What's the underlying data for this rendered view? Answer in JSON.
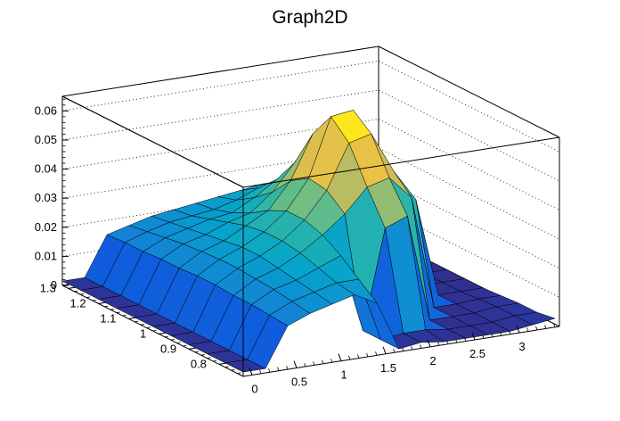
{
  "chart_data": {
    "type": "surface",
    "title": "Graph2D",
    "x_axis": {
      "min": -0.1,
      "max": 3.45,
      "ticks": [
        0,
        0.5,
        1,
        1.5,
        2,
        2.5,
        3
      ],
      "tick_labels": [
        "0",
        "0.5",
        "1",
        "1.5",
        "2",
        "2.5",
        "3"
      ]
    },
    "y_axis": {
      "min": 0.72,
      "max": 1.32,
      "ticks": [
        0.8,
        0.9,
        1,
        1.1,
        1.2,
        1.3
      ],
      "tick_labels": [
        "0.8",
        "0.9",
        "1",
        "1.1",
        "1.2",
        "1.3"
      ]
    },
    "z_axis": {
      "min": 0,
      "max": 0.065,
      "ticks": [
        0,
        0.01,
        0.02,
        0.03,
        0.04,
        0.05,
        0.06
      ],
      "tick_labels": [
        "0",
        "0.01",
        "0.02",
        "0.03",
        "0.04",
        "0.05",
        "0.06"
      ]
    },
    "grid": true,
    "colormap": [
      "#352a87",
      "#0f5cdd",
      "#1481d6",
      "#06a4ca",
      "#2eb7a4",
      "#87bf77",
      "#d1bb59",
      "#fec832",
      "#f9fb0e"
    ],
    "grid_x": [
      -0.1,
      0.15,
      0.4,
      0.65,
      0.9,
      1.15,
      1.4,
      1.65,
      1.9,
      2.15,
      2.4,
      2.65,
      2.9,
      3.15,
      3.4
    ],
    "grid_y": [
      0.72,
      0.78,
      0.84,
      0.9,
      0.96,
      1.02,
      1.08,
      1.14,
      1.2,
      1.26,
      1.32
    ],
    "surface_z": [
      [
        0.0015,
        0.0015,
        0.0015,
        0.0015,
        0.0015,
        0.0015,
        0.0015,
        0.0015,
        0.0015,
        0.0015,
        0.0015
      ],
      [
        0.0015,
        0.0015,
        0.0015,
        0.0015,
        0.0015,
        0.0015,
        0.0015,
        0.0015,
        0.0015,
        0.0015,
        0.0015
      ],
      [
        0.015,
        0.0155,
        0.016,
        0.016,
        0.0165,
        0.0165,
        0.016,
        0.016,
        0.0155,
        0.0155,
        0.015
      ],
      [
        0.018,
        0.019,
        0.02,
        0.0205,
        0.021,
        0.021,
        0.0205,
        0.02,
        0.019,
        0.018,
        0.017
      ],
      [
        0.02,
        0.021,
        0.022,
        0.023,
        0.024,
        0.024,
        0.023,
        0.022,
        0.021,
        0.02,
        0.019
      ],
      [
        0.022,
        0.023,
        0.025,
        0.027,
        0.028,
        0.028,
        0.027,
        0.025,
        0.023,
        0.021,
        0.02
      ],
      [
        0.018,
        0.023,
        0.028,
        0.032,
        0.034,
        0.034,
        0.031,
        0.027,
        0.024,
        0.022,
        0.021
      ],
      [
        0.001,
        0.001,
        0.001,
        0.038,
        0.043,
        0.044,
        0.04,
        0.033,
        0.028,
        0.024,
        0.022
      ],
      [
        0.002,
        0.002,
        0.035,
        0.046,
        0.058,
        0.064,
        0.055,
        0.042,
        0.033,
        0.027,
        0.023
      ],
      [
        0.001,
        0.002,
        0.038,
        0.048,
        0.06,
        0.065,
        0.056,
        0.044,
        0.035,
        0.028,
        0.024
      ],
      [
        0.001,
        0.001,
        0.001,
        0.04,
        0.046,
        0.048,
        0.044,
        0.036,
        0.03,
        0.025,
        0.021
      ],
      [
        0.001,
        0.001,
        0.001,
        0.001,
        0.035,
        0.038,
        0.036,
        0.03,
        0.026,
        0.022,
        0.019
      ],
      [
        0.001,
        0.001,
        0.001,
        0.001,
        0.001,
        0.001,
        0.001,
        0.001,
        0.001,
        0.001,
        0.001
      ],
      [
        0.002,
        0.002,
        0.002,
        0.0015,
        0.001,
        0.001,
        0.001,
        0.001,
        0.001,
        0.001,
        0.001
      ],
      [
        0.003,
        0.002,
        0.002,
        0.0015,
        0.001,
        0.001,
        0.001,
        0.001,
        0.001,
        0.001,
        0.001
      ]
    ]
  }
}
